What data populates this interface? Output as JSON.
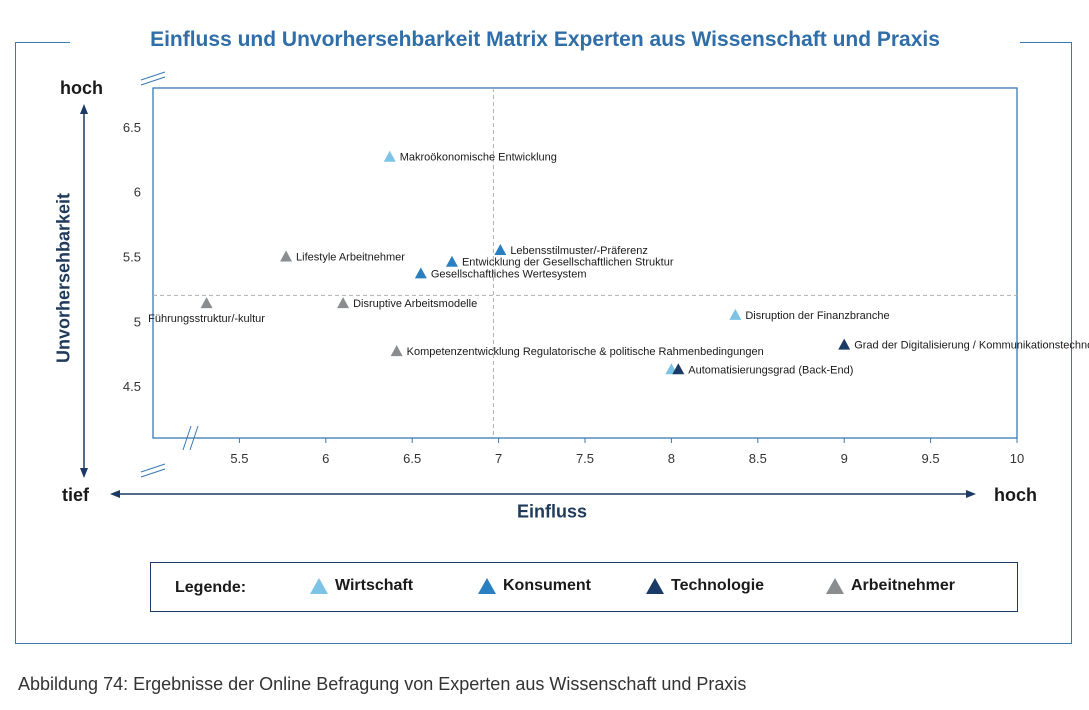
{
  "title": "Einfluss und Unvorhersehbarkeit Matrix Experten aus Wissenschaft und Praxis",
  "caption": "Abbildung 74: Ergebnisse der Online Befragung von Experten aus Wissenschaft und Praxis",
  "axis_words": {
    "y_high": "hoch",
    "y_low": "tief",
    "x_high": "hoch"
  },
  "legend": {
    "title": "Legende:",
    "items": [
      {
        "label": "Wirtschaft",
        "color": "#7cc3e6"
      },
      {
        "label": "Konsument",
        "color": "#2a7fc0"
      },
      {
        "label": "Technologie",
        "color": "#1b3a66"
      },
      {
        "label": "Arbeitnehmer",
        "color": "#8a8d90"
      }
    ]
  },
  "chart_data": {
    "type": "scatter",
    "title": "Einfluss und Unvorhersehbarkeit Matrix Experten aus Wissenschaft und Praxis",
    "xlabel": "Einfluss",
    "ylabel": "Unvorhersehbarkeit",
    "xlim": [
      5,
      10
    ],
    "ylim": [
      4.1,
      6.8
    ],
    "xticks": [
      5.5,
      6,
      6.5,
      7,
      7.5,
      8,
      8.5,
      9,
      9.5,
      10
    ],
    "yticks": [
      4.5,
      5,
      5.5,
      6,
      6.5
    ],
    "reference_lines": {
      "x": 6.97,
      "y": 5.2
    },
    "grid": false,
    "series": [
      {
        "name": "Wirtschaft",
        "color": "#7cc3e6",
        "points": [
          {
            "x": 6.37,
            "y": 6.27,
            "label": "Makroökonomische Entwicklung",
            "anchor": "right"
          },
          {
            "x": 8.37,
            "y": 5.05,
            "label": "Disruption der Finanzbranche",
            "anchor": "right"
          },
          {
            "x": 8.0,
            "y": 4.63,
            "label": "",
            "anchor": "right"
          }
        ]
      },
      {
        "name": "Konsument",
        "color": "#2a7fc0",
        "points": [
          {
            "x": 7.01,
            "y": 5.55,
            "label": "Lebensstilmuster/-Präferenz",
            "anchor": "right"
          },
          {
            "x": 6.73,
            "y": 5.46,
            "label": "Entwicklung der Gesellschaftlichen Struktur",
            "anchor": "right"
          },
          {
            "x": 6.55,
            "y": 5.37,
            "label": "Gesellschaftliches Wertesystem",
            "anchor": "right"
          }
        ]
      },
      {
        "name": "Technologie",
        "color": "#1b3a66",
        "points": [
          {
            "x": 9.0,
            "y": 4.82,
            "label": "Grad der Digitalisierung / Kommunikationstechnologie",
            "anchor": "right"
          },
          {
            "x": 8.04,
            "y": 4.63,
            "label": "Automatisierungsgrad (Back-End)",
            "anchor": "right"
          }
        ]
      },
      {
        "name": "Arbeitnehmer",
        "color": "#8a8d90",
        "points": [
          {
            "x": 5.77,
            "y": 5.5,
            "label": "Lifestyle Arbeitnehmer",
            "anchor": "right"
          },
          {
            "x": 5.31,
            "y": 5.14,
            "label": "Führungsstruktur/-kultur",
            "anchor": "below"
          },
          {
            "x": 6.1,
            "y": 5.14,
            "label": "Disruptive Arbeitsmodelle",
            "anchor": "right"
          },
          {
            "x": 6.41,
            "y": 4.77,
            "label": "Kompetenzentwicklung Regulatorische & politische Rahmenbedingungen",
            "anchor": "right"
          }
        ]
      }
    ]
  }
}
